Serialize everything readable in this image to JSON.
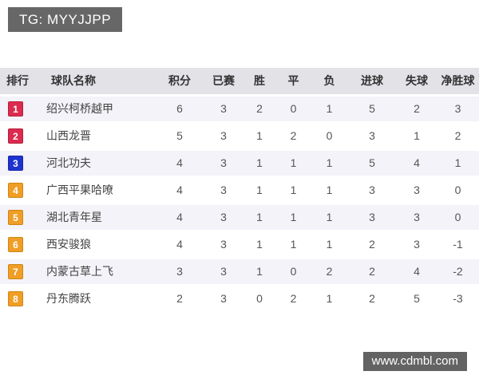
{
  "top_badge": {
    "label": "TG: MYYJJPP"
  },
  "bottom_badge": {
    "label": "www.cdmbl.com"
  },
  "colors": {
    "header_bg": "#e2e2e7",
    "odd_row_bg": "#f3f3f9",
    "watermark_bg": "#676767",
    "rank_red": "#dc2b4e",
    "rank_red_border": "#b81d3d",
    "rank_blue": "#1e32cf",
    "rank_blue_border": "#1726a8",
    "rank_orange": "#f09e26",
    "rank_orange_border": "#cf8512"
  },
  "table": {
    "headers": [
      "排行",
      "球队名称",
      "积分",
      "已赛",
      "胜",
      "平",
      "负",
      "进球",
      "失球",
      "净胜球"
    ],
    "column_keys": [
      "rank",
      "team",
      "points",
      "played",
      "win",
      "draw",
      "loss",
      "goals_for",
      "goals_against",
      "goal_diff"
    ],
    "rows": [
      {
        "rank": "1",
        "badge_color": "#dc2b4e",
        "badge_border": "#b81d3d",
        "team": "绍兴柯桥越甲",
        "points": "6",
        "played": "3",
        "win": "2",
        "draw": "0",
        "loss": "1",
        "goals_for": "5",
        "goals_against": "2",
        "goal_diff": "3"
      },
      {
        "rank": "2",
        "badge_color": "#dc2b4e",
        "badge_border": "#b81d3d",
        "team": "山西龙晋",
        "points": "5",
        "played": "3",
        "win": "1",
        "draw": "2",
        "loss": "0",
        "goals_for": "3",
        "goals_against": "1",
        "goal_diff": "2"
      },
      {
        "rank": "3",
        "badge_color": "#1e32cf",
        "badge_border": "#1726a8",
        "team": "河北功夫",
        "points": "4",
        "played": "3",
        "win": "1",
        "draw": "1",
        "loss": "1",
        "goals_for": "5",
        "goals_against": "4",
        "goal_diff": "1"
      },
      {
        "rank": "4",
        "badge_color": "#f09e26",
        "badge_border": "#cf8512",
        "team": "广西平果哈嘹",
        "points": "4",
        "played": "3",
        "win": "1",
        "draw": "1",
        "loss": "1",
        "goals_for": "3",
        "goals_against": "3",
        "goal_diff": "0"
      },
      {
        "rank": "5",
        "badge_color": "#f09e26",
        "badge_border": "#cf8512",
        "team": "湖北青年星",
        "points": "4",
        "played": "3",
        "win": "1",
        "draw": "1",
        "loss": "1",
        "goals_for": "3",
        "goals_against": "3",
        "goal_diff": "0"
      },
      {
        "rank": "6",
        "badge_color": "#f09e26",
        "badge_border": "#cf8512",
        "team": "西安骏狼",
        "points": "4",
        "played": "3",
        "win": "1",
        "draw": "1",
        "loss": "1",
        "goals_for": "2",
        "goals_against": "3",
        "goal_diff": "-1"
      },
      {
        "rank": "7",
        "badge_color": "#f09e26",
        "badge_border": "#cf8512",
        "team": "内蒙古草上飞",
        "points": "3",
        "played": "3",
        "win": "1",
        "draw": "0",
        "loss": "2",
        "goals_for": "2",
        "goals_against": "4",
        "goal_diff": "-2"
      },
      {
        "rank": "8",
        "badge_color": "#f09e26",
        "badge_border": "#cf8512",
        "team": "丹东腾跃",
        "points": "2",
        "played": "3",
        "win": "0",
        "draw": "2",
        "loss": "1",
        "goals_for": "2",
        "goals_against": "5",
        "goal_diff": "-3"
      }
    ]
  }
}
